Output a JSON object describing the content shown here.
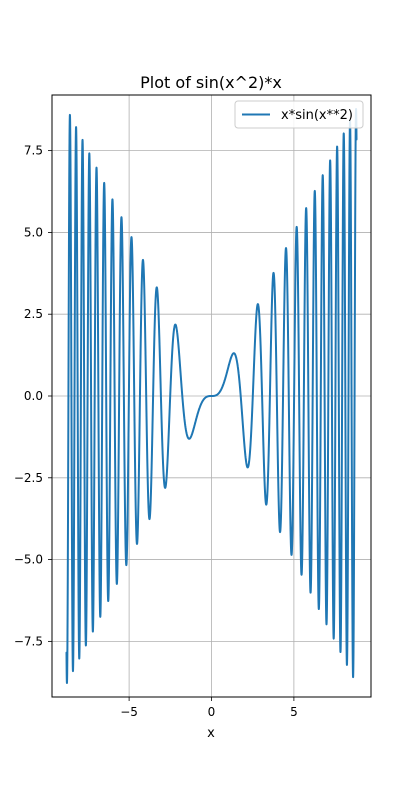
{
  "chart_data": {
    "type": "line",
    "title": "Plot of sin(x^2)*x",
    "xlabel": "x",
    "ylabel": "",
    "function": "x*sin(x**2)",
    "x_domain": [
      -8.8,
      8.8
    ],
    "xlim": [
      -9.68,
      9.68
    ],
    "ylim": [
      -9.2,
      9.2
    ],
    "grid": true,
    "legend_position": "upper right",
    "x_ticks": [
      {
        "value": -5,
        "label": "−5"
      },
      {
        "value": 0,
        "label": "0"
      },
      {
        "value": 5,
        "label": "5"
      }
    ],
    "y_ticks": [
      {
        "value": -7.5,
        "label": "−7.5"
      },
      {
        "value": -5.0,
        "label": "−5.0"
      },
      {
        "value": -2.5,
        "label": "−2.5"
      },
      {
        "value": 0.0,
        "label": "0.0"
      },
      {
        "value": 2.5,
        "label": "2.5"
      },
      {
        "value": 5.0,
        "label": "5.0"
      },
      {
        "value": 7.5,
        "label": "7.5"
      }
    ],
    "series": [
      {
        "name": "x*sin(x**2)",
        "color": "#1f77b4"
      }
    ]
  }
}
